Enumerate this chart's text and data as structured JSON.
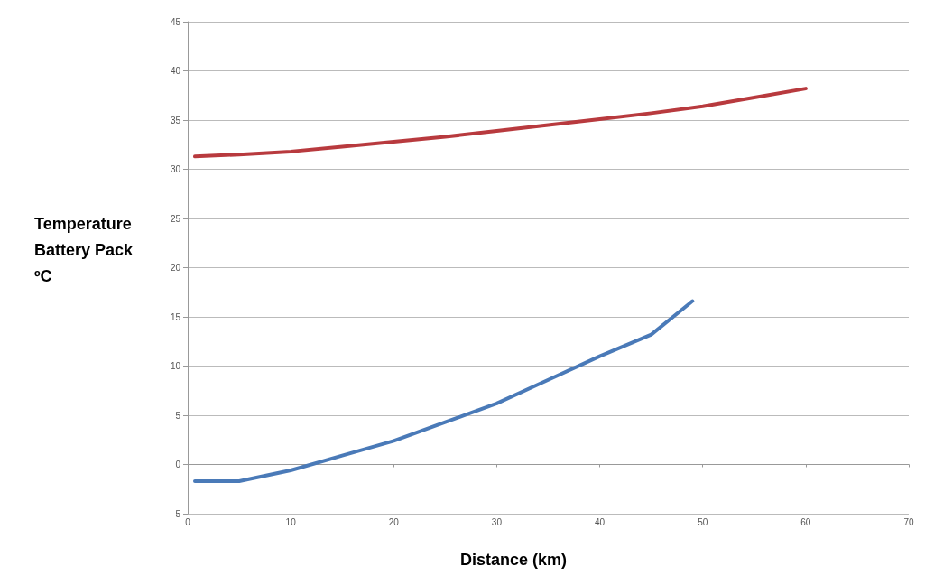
{
  "chart_data": {
    "type": "line",
    "xlabel": "Distance (km)",
    "ylabel": "Temperature\nBattery Pack\nºC",
    "xlim": [
      0,
      70
    ],
    "xticks": [
      0,
      10,
      20,
      30,
      40,
      50,
      60,
      70
    ],
    "ylim": [
      -5,
      45
    ],
    "yticks": [
      -5,
      0,
      5,
      10,
      15,
      20,
      25,
      30,
      35,
      40,
      45
    ],
    "grid": "y",
    "marker": "none",
    "line_style": "solid",
    "series": [
      {
        "color": "#b83a3e",
        "x": [
          0.7,
          5,
          10,
          15,
          20,
          25,
          30,
          35,
          40,
          45,
          50,
          55,
          60
        ],
        "values": [
          31.3,
          31.5,
          31.8,
          32.3,
          32.8,
          33.3,
          33.9,
          34.5,
          35.1,
          35.7,
          36.4,
          37.3,
          38.2
        ]
      },
      {
        "color": "#4a7ab8",
        "x": [
          0.7,
          5,
          10,
          15,
          20,
          25,
          30,
          35,
          40,
          45,
          49
        ],
        "values": [
          -1.7,
          -1.7,
          -0.6,
          0.9,
          2.4,
          4.3,
          6.2,
          8.6,
          11.0,
          13.2,
          16.6
        ]
      }
    ]
  }
}
